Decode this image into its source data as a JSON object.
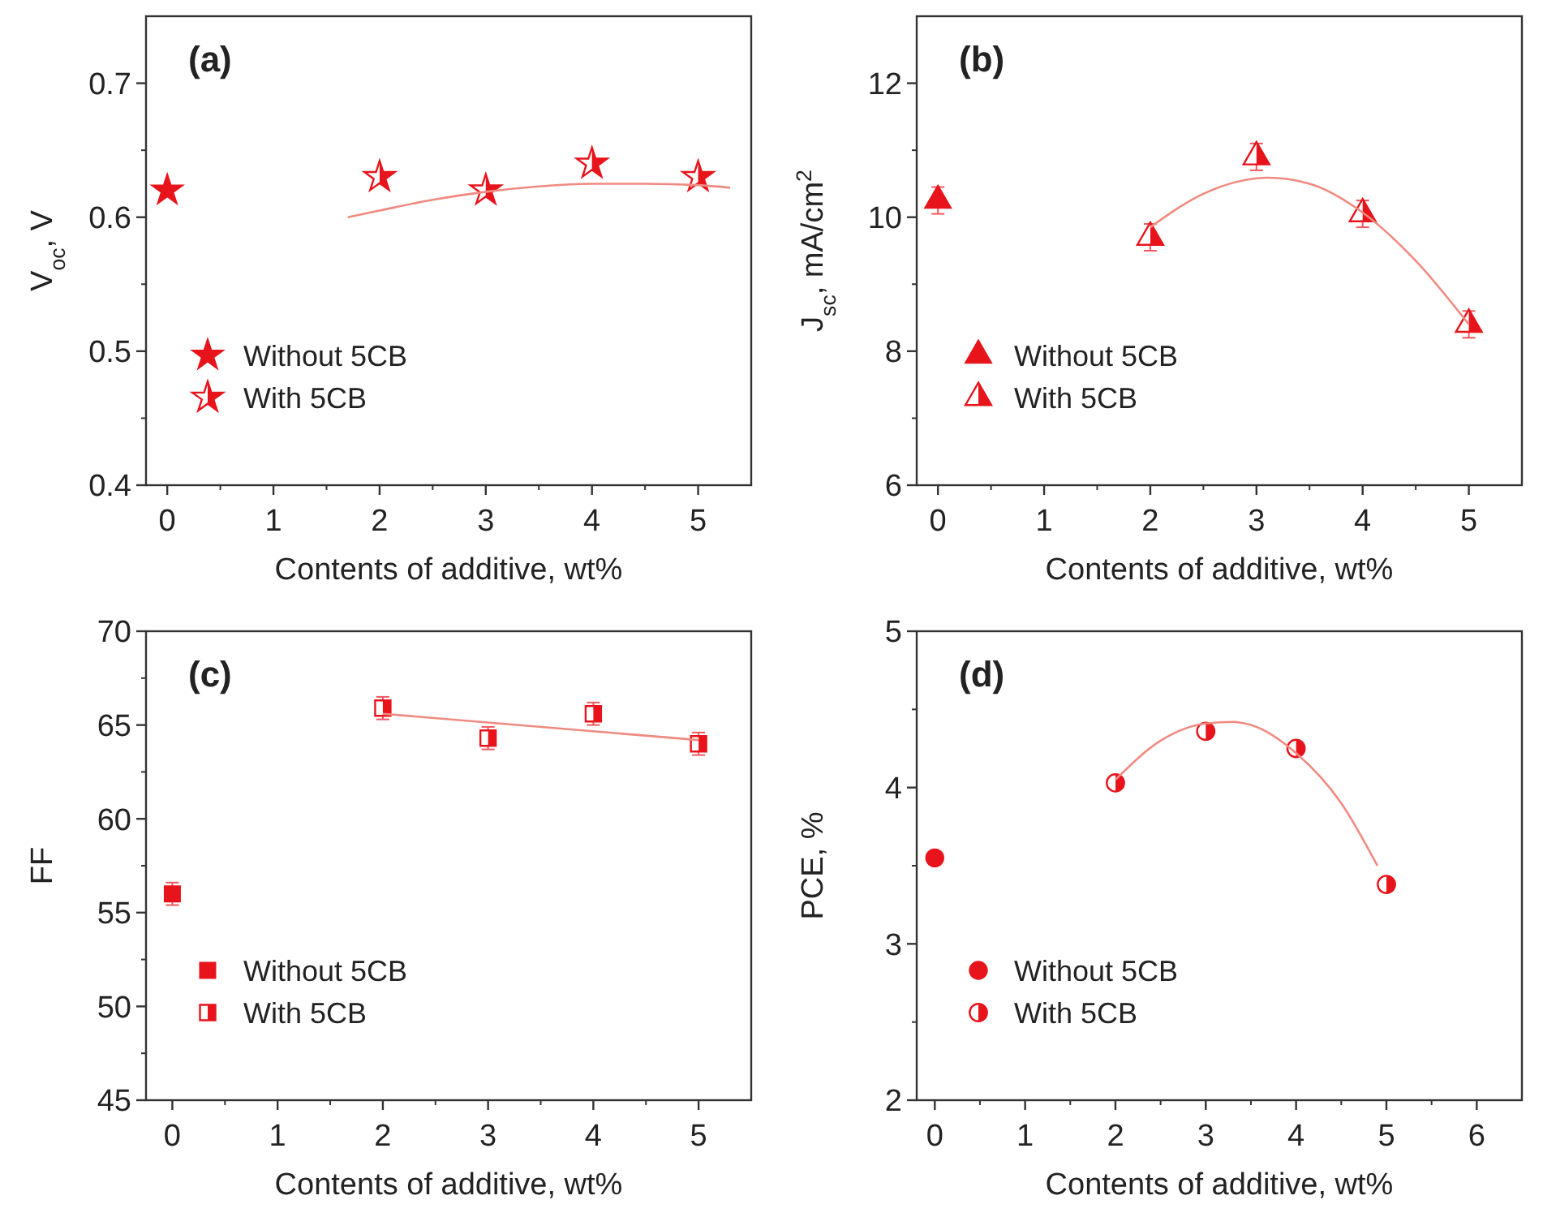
{
  "chart_data": [
    {
      "type": "scatter",
      "title": "(a)",
      "xlabel": "Contents of additive, wt%",
      "ylabel": "V$_{oc}$, V",
      "xlim": [
        -0.2,
        5.5
      ],
      "xticks": [
        0,
        1,
        2,
        3,
        4,
        5
      ],
      "ylim": [
        0.4,
        0.75
      ],
      "yticks": [
        0.4,
        0.5,
        0.6,
        0.7
      ],
      "marker": "star",
      "legend": "bottom left",
      "grid": false,
      "series": [
        {
          "name": "Without 5CB",
          "color": "#e8141c",
          "x": [
            0
          ],
          "values": [
            0.62
          ]
        },
        {
          "name": "With 5CB",
          "color": "#e8141c",
          "x": [
            2,
            3,
            4,
            5
          ],
          "values": [
            0.63,
            0.62,
            0.64,
            0.63
          ]
        },
        {
          "type": "line",
          "marker": "none",
          "color": "#f08a80",
          "x": [
            1.7,
            2,
            2.5,
            3,
            3.5,
            4,
            4.5,
            5,
            5.3
          ],
          "values": [
            0.6,
            0.605,
            0.613,
            0.619,
            0.623,
            0.625,
            0.625,
            0.624,
            0.622
          ]
        }
      ]
    },
    {
      "type": "scatter",
      "title": "(b)",
      "xlabel": "Contents of additive, wt%",
      "ylabel": "J$_{sc}$, mA/cm$^{2}$",
      "xlim": [
        -0.2,
        5.5
      ],
      "xticks": [
        0,
        1,
        2,
        3,
        4,
        5
      ],
      "ylim": [
        6,
        13
      ],
      "yticks": [
        6,
        8,
        10,
        12
      ],
      "marker": "triangle",
      "legend": "bottom left",
      "grid": false,
      "series": [
        {
          "name": "Without 5CB",
          "color": "#e8141c",
          "x": [
            0
          ],
          "values": [
            10.25
          ],
          "errors": [
            0.2
          ]
        },
        {
          "name": "With 5CB",
          "color": "#e8141c",
          "x": [
            2,
            3,
            4,
            5
          ],
          "values": [
            9.7,
            10.9,
            10.05,
            8.4
          ],
          "errors": [
            0.2,
            0.2,
            0.2,
            0.2
          ]
        },
        {
          "type": "line",
          "marker": "none",
          "color": "#f08a80",
          "x": [
            2,
            2.5,
            3,
            3.1,
            3.5,
            4,
            4.5,
            5
          ],
          "values": [
            9.85,
            10.35,
            10.58,
            10.59,
            10.5,
            10.07,
            9.35,
            8.4
          ]
        }
      ]
    },
    {
      "type": "scatter",
      "title": "(c)",
      "xlabel": "Contents of additive, wt%",
      "ylabel": "FF",
      "xlim": [
        -0.25,
        5.5
      ],
      "xticks": [
        0,
        1,
        2,
        3,
        4,
        5
      ],
      "ylim": [
        45,
        70
      ],
      "yticks": [
        45,
        50,
        55,
        60,
        65,
        70
      ],
      "marker": "square",
      "legend": "bottom left",
      "grid": false,
      "series": [
        {
          "name": "Without 5CB",
          "color": "#e8141c",
          "x": [
            0
          ],
          "values": [
            56
          ],
          "errors": [
            0.6
          ]
        },
        {
          "name": "With 5CB",
          "color": "#e8141c",
          "x": [
            2,
            3,
            4,
            5
          ],
          "values": [
            65.9,
            64.3,
            65.6,
            64
          ],
          "errors": [
            0.6,
            0.6,
            0.6,
            0.6
          ]
        },
        {
          "type": "line",
          "marker": "none",
          "color": "#f08a80",
          "x": [
            2,
            5
          ],
          "values": [
            65.6,
            64.2
          ]
        }
      ]
    },
    {
      "type": "scatter",
      "title": "(d)",
      "xlabel": "Contents of additive, wt%",
      "ylabel": "PCE, %",
      "xlim": [
        -0.2,
        6.5
      ],
      "xticks": [
        0,
        1,
        2,
        3,
        4,
        5,
        6
      ],
      "ylim": [
        2,
        5
      ],
      "yticks": [
        2,
        3,
        4,
        5
      ],
      "marker": "circle",
      "legend": "bottom left",
      "grid": false,
      "series": [
        {
          "name": "Without 5CB",
          "color": "#e8141c",
          "x": [
            0
          ],
          "values": [
            3.55
          ]
        },
        {
          "name": "With 5CB",
          "color": "#e8141c",
          "x": [
            2,
            3,
            4,
            5
          ],
          "values": [
            4.03,
            4.36,
            4.25,
            3.38
          ]
        },
        {
          "type": "line",
          "marker": "none",
          "color": "#f08a80",
          "x": [
            2,
            2.5,
            3,
            3.3,
            3.5,
            4,
            4.5,
            4.9
          ],
          "values": [
            4.05,
            4.3,
            4.41,
            4.42,
            4.4,
            4.22,
            3.9,
            3.5
          ]
        }
      ]
    }
  ]
}
